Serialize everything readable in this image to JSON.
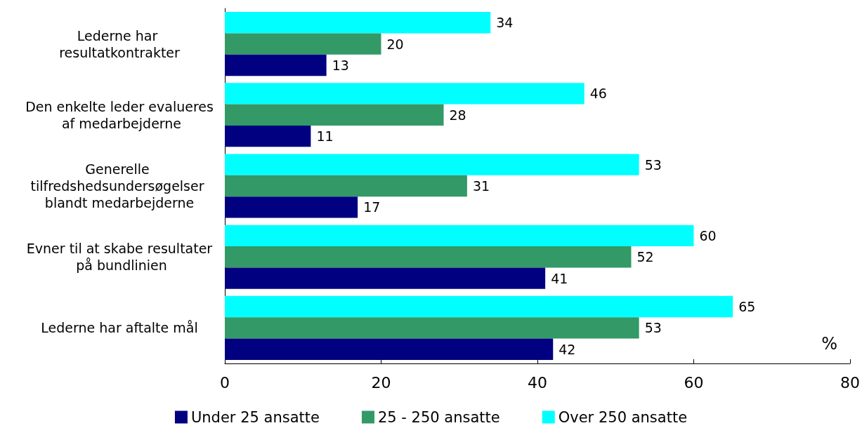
{
  "chart_data": {
    "type": "bar",
    "orientation": "horizontal",
    "categories": [
      "Lederne har resultatkontrakter",
      "Den enkelte leder evalueres af medarbejderne",
      "Generelle tilfredshedsundersøgelser blandt medarbejderne",
      "Evner til at skabe resultater på bundlinien",
      "Lederne har aftalte mål"
    ],
    "series": [
      {
        "name": "Under 25 ansatte",
        "color": "#000080",
        "values": [
          13,
          11,
          17,
          41,
          42
        ]
      },
      {
        "name": "25 - 250 ansatte",
        "color": "#339966",
        "values": [
          20,
          28,
          31,
          52,
          53
        ]
      },
      {
        "name": "Over 250 ansatte",
        "color": "#00ffff",
        "values": [
          34,
          46,
          53,
          60,
          65
        ]
      }
    ],
    "xlabel": "%",
    "xlim": [
      0,
      80
    ],
    "xticks": [
      0,
      20,
      40,
      60,
      80
    ],
    "data_labels": true,
    "grid": false,
    "legend": "bottom"
  }
}
